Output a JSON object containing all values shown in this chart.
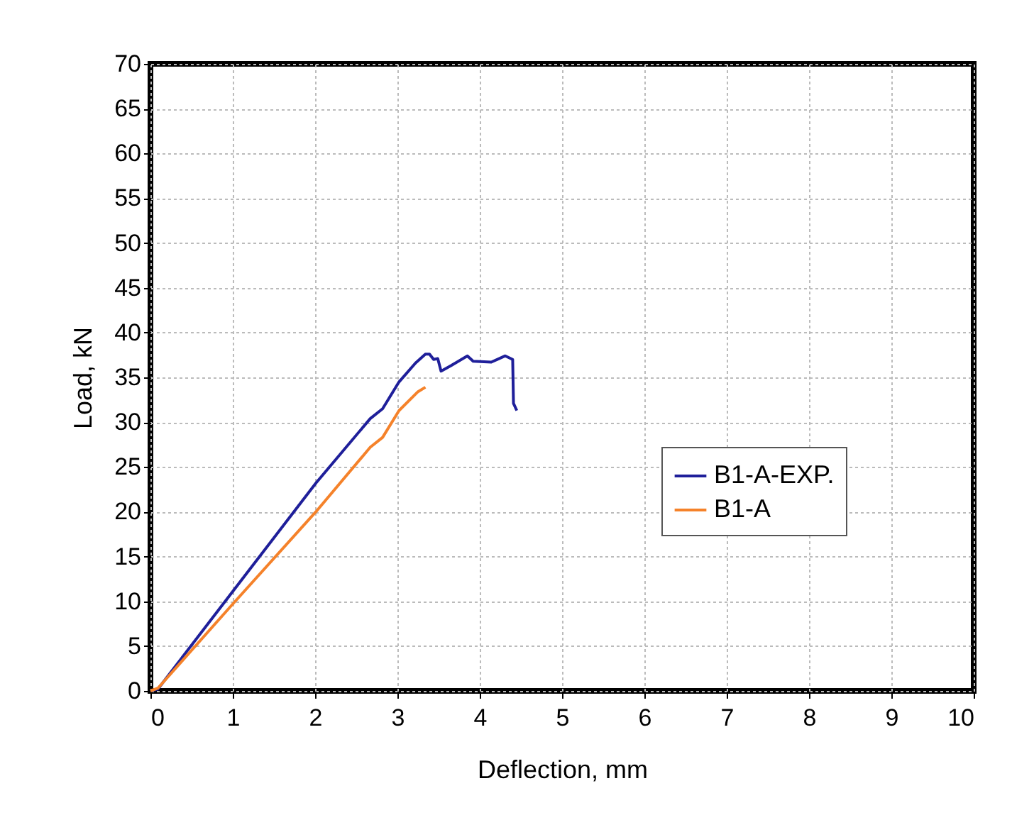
{
  "chart_data": {
    "type": "line",
    "xlabel": "Deflection, mm",
    "ylabel": "Load, kN",
    "xlim": [
      0,
      10
    ],
    "xticks": [
      0,
      1,
      2,
      3,
      4,
      5,
      6,
      7,
      8,
      9,
      10
    ],
    "ylim": [
      0,
      70
    ],
    "yticks": [
      0,
      5,
      10,
      15,
      20,
      25,
      30,
      35,
      40,
      45,
      50,
      55,
      60,
      65,
      70
    ],
    "grid": true,
    "legend": "right",
    "marker": "none",
    "line_style": "solid",
    "series": [
      {
        "name": "B1-A-EXP.",
        "color": "#1f1f9a",
        "x": [
          0,
          0.09,
          1.0,
          2.01,
          2.67,
          2.82,
          3.02,
          3.22,
          3.34,
          3.39,
          3.44,
          3.49,
          3.53,
          3.65,
          3.85,
          3.92,
          4.14,
          4.31,
          4.4,
          4.41,
          4.45
        ],
        "values": [
          0,
          0.2,
          11.1,
          23.2,
          30.4,
          31.5,
          34.5,
          36.6,
          37.6,
          37.6,
          37.0,
          37.1,
          35.7,
          36.3,
          37.4,
          36.8,
          36.7,
          37.4,
          37.0,
          32.1,
          31.3
        ]
      },
      {
        "name": "B1-A",
        "color": "#f5822a",
        "x": [
          0,
          0.09,
          1.0,
          2.01,
          2.67,
          2.82,
          3.02,
          3.25,
          3.34
        ],
        "values": [
          0,
          0.3,
          9.7,
          20.0,
          27.2,
          28.3,
          31.3,
          33.4,
          33.9
        ]
      }
    ]
  }
}
